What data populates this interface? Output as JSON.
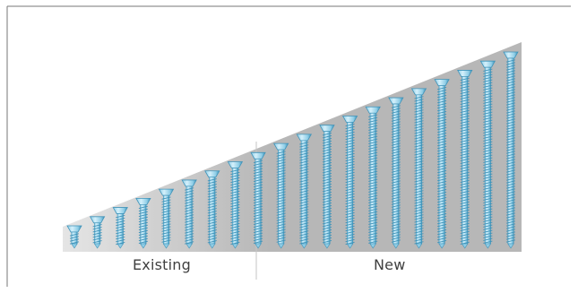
{
  "groups": {
    "existing": {
      "label": "Existing",
      "count": 8
    },
    "new": {
      "label": "New",
      "count": 12
    }
  },
  "colors": {
    "wedge_light": "#e5e5e5",
    "wedge_dark": "#b7b7b7",
    "screw_light": "#d4f0fb",
    "screw_mid": "#8fcde6",
    "screw_dark": "#3f93b9",
    "border": "#777777",
    "divider": "#c6c6c6"
  },
  "icon": "bone-screw-icon"
}
